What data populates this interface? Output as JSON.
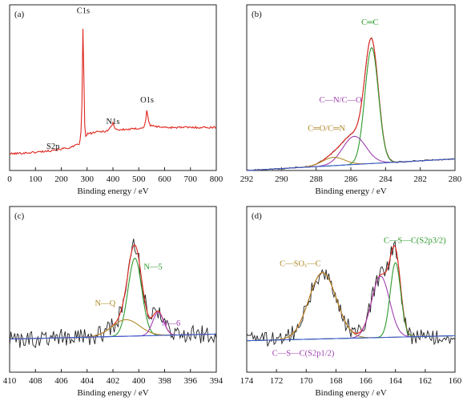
{
  "chart_data": [
    {
      "panel": "(a)",
      "type": "line",
      "xlabel": "Binding energy / eV",
      "xlim": [
        0,
        800
      ],
      "x_reversed": false,
      "xticks": [
        0,
        100,
        200,
        300,
        400,
        500,
        600,
        700,
        800
      ],
      "ylim": [
        0,
        1
      ],
      "annotations": [
        {
          "text": "S2p",
          "x": 168,
          "y": 0.13
        },
        {
          "text": "C1s",
          "x": 285,
          "y": 0.95
        },
        {
          "text": "N1s",
          "x": 400,
          "y": 0.28
        },
        {
          "text": "O1s",
          "x": 532,
          "y": 0.41
        }
      ],
      "series": [
        {
          "color": "#e0261e",
          "noise": 0.006,
          "x": [
            0,
            100,
            160,
            165,
            170,
            200,
            240,
            270,
            278,
            282,
            284,
            285,
            286,
            288,
            292,
            300,
            330,
            380,
            395,
            400,
            405,
            420,
            480,
            520,
            528,
            532,
            536,
            545,
            600,
            700,
            800
          ],
          "y": [
            0.1,
            0.11,
            0.12,
            0.13,
            0.125,
            0.13,
            0.14,
            0.16,
            0.25,
            0.55,
            0.92,
            0.96,
            0.85,
            0.45,
            0.2,
            0.22,
            0.23,
            0.24,
            0.27,
            0.29,
            0.26,
            0.245,
            0.25,
            0.26,
            0.31,
            0.38,
            0.31,
            0.27,
            0.26,
            0.26,
            0.26
          ]
        }
      ]
    },
    {
      "panel": "(b)",
      "type": "line",
      "xlabel": "Binding energy / eV",
      "xlim": [
        292,
        280
      ],
      "x_reversed": true,
      "xticks": [
        292,
        290,
        288,
        286,
        284,
        282,
        280
      ],
      "ylim": [
        0,
        1
      ],
      "annotations": [
        {
          "text": "C═C",
          "x": 284.9,
          "y": 0.88,
          "color": "#2e9a2e"
        },
        {
          "text": "C—N/C—O",
          "x": 286.6,
          "y": 0.41,
          "color": "#a040b0"
        },
        {
          "text": "C═O/C═N",
          "x": 287.4,
          "y": 0.24,
          "color": "#b08a2a"
        }
      ],
      "series": [
        {
          "name": "raw",
          "color": "#222222",
          "noise": 0.004,
          "model": {
            "baseline": [
              0.07,
              0.0
            ],
            "peaks": [
              [
                284.8,
                0.7,
                0.55
              ],
              [
                285.8,
                0.17,
                0.95
              ],
              [
                287.0,
                0.05,
                0.9
              ]
            ]
          }
        },
        {
          "name": "fit",
          "color": "#e0261e",
          "model": {
            "baseline": [
              0.07,
              0.0
            ],
            "peaks": [
              [
                284.8,
                0.7,
                0.55
              ],
              [
                285.8,
                0.17,
                0.95
              ],
              [
                287.0,
                0.05,
                0.9
              ]
            ]
          }
        },
        {
          "name": "C═C",
          "color": "#2e9a2e",
          "model": {
            "baseline": [
              0.07,
              0.0
            ],
            "peaks": [
              [
                284.8,
                0.7,
                0.55
              ]
            ]
          }
        },
        {
          "name": "C—N/C—O",
          "color": "#a040b0",
          "model": {
            "baseline": [
              0.07,
              0.0
            ],
            "peaks": [
              [
                285.8,
                0.17,
                0.95
              ]
            ]
          }
        },
        {
          "name": "C═O/C═N",
          "color": "#b08a2a",
          "model": {
            "baseline": [
              0.07,
              0.0
            ],
            "peaks": [
              [
                287.0,
                0.05,
                0.9
              ]
            ]
          }
        },
        {
          "name": "baseline",
          "color": "#3a5bd0",
          "model": {
            "baseline": [
              0.07,
              0.0
            ],
            "peaks": []
          }
        }
      ]
    },
    {
      "panel": "(c)",
      "type": "line",
      "xlabel": "Binding energy / eV",
      "xlim": [
        410,
        394
      ],
      "x_reversed": true,
      "xticks": [
        410,
        408,
        406,
        404,
        402,
        400,
        398,
        396,
        394
      ],
      "ylim": [
        0,
        1
      ],
      "annotations": [
        {
          "text": "N—5",
          "x": 398.9,
          "y": 0.62,
          "color": "#2e9a2e"
        },
        {
          "text": "N—Q",
          "x": 402.6,
          "y": 0.4,
          "color": "#b08a2a"
        },
        {
          "text": "N—6",
          "x": 397.5,
          "y": 0.28,
          "color": "#a040b0"
        }
      ],
      "series": [
        {
          "name": "raw",
          "color": "#222222",
          "noise": 0.055,
          "model": {
            "baseline": [
              0.23,
              0.2
            ],
            "peaks": [
              [
                400.3,
                0.47,
                0.75
              ],
              [
                401.0,
                0.1,
                1.5
              ],
              [
                398.5,
                0.14,
                0.6
              ]
            ]
          }
        },
        {
          "name": "fit",
          "color": "#e0261e",
          "model": {
            "baseline": [
              0.23,
              0.2
            ],
            "peaks": [
              [
                400.3,
                0.47,
                0.75
              ],
              [
                401.0,
                0.1,
                1.5
              ],
              [
                398.5,
                0.14,
                0.6
              ]
            ]
          }
        },
        {
          "name": "N—5",
          "color": "#2e9a2e",
          "model": {
            "baseline": [
              0.23,
              0.2
            ],
            "peaks": [
              [
                400.3,
                0.47,
                0.75
              ]
            ]
          }
        },
        {
          "name": "N—Q",
          "color": "#b08a2a",
          "model": {
            "baseline": [
              0.23,
              0.2
            ],
            "peaks": [
              [
                401.0,
                0.1,
                1.5
              ]
            ]
          }
        },
        {
          "name": "N—6",
          "color": "#a040b0",
          "model": {
            "baseline": [
              0.23,
              0.2
            ],
            "peaks": [
              [
                398.5,
                0.14,
                0.6
              ]
            ]
          }
        },
        {
          "name": "baseline",
          "color": "#3a5bd0",
          "model": {
            "baseline": [
              0.23,
              0.2
            ],
            "peaks": []
          }
        }
      ]
    },
    {
      "panel": "(d)",
      "type": "line",
      "xlabel": "Binding energy / eV",
      "xlim": [
        174,
        160
      ],
      "x_reversed": true,
      "xticks": [
        174,
        172,
        170,
        168,
        166,
        164,
        162,
        160
      ],
      "ylim": [
        0,
        1
      ],
      "annotations": [
        {
          "text": "C—SOₓ—C",
          "x": 170.4,
          "y": 0.64,
          "color": "#b08a2a"
        },
        {
          "text": "C—S—C(S2p3/2)",
          "x": 162.7,
          "y": 0.78,
          "color": "#2e9a2e"
        },
        {
          "text": "C—S—C(S2p1/2)",
          "x": 170.2,
          "y": 0.1,
          "color": "#a040b0"
        }
      ],
      "series": [
        {
          "name": "raw",
          "color": "#222222",
          "noise": 0.05,
          "model": {
            "baseline": [
              0.22,
              0.19
            ],
            "peaks": [
              [
                168.9,
                0.4,
                1.3
              ],
              [
                165.0,
                0.37,
                0.85
              ],
              [
                164.0,
                0.45,
                0.5
              ]
            ]
          }
        },
        {
          "name": "fit",
          "color": "#e0261e",
          "model": {
            "baseline": [
              0.22,
              0.19
            ],
            "peaks": [
              [
                168.9,
                0.4,
                1.3
              ],
              [
                165.0,
                0.37,
                0.85
              ],
              [
                164.0,
                0.45,
                0.5
              ]
            ]
          }
        },
        {
          "name": "C—SOₓ—C",
          "color": "#b08a2a",
          "model": {
            "baseline": [
              0.22,
              0.19
            ],
            "peaks": [
              [
                168.9,
                0.4,
                1.3
              ]
            ]
          }
        },
        {
          "name": "C—S—C(S2p1/2)",
          "color": "#a040b0",
          "model": {
            "baseline": [
              0.22,
              0.19
            ],
            "peaks": [
              [
                165.0,
                0.37,
                0.85
              ]
            ]
          }
        },
        {
          "name": "C—S—C(S2p3/2)",
          "color": "#2e9a2e",
          "model": {
            "baseline": [
              0.22,
              0.19
            ],
            "peaks": [
              [
                164.0,
                0.45,
                0.5
              ]
            ]
          }
        },
        {
          "name": "baseline",
          "color": "#3a5bd0",
          "model": {
            "baseline": [
              0.22,
              0.19
            ],
            "peaks": []
          }
        }
      ]
    }
  ]
}
